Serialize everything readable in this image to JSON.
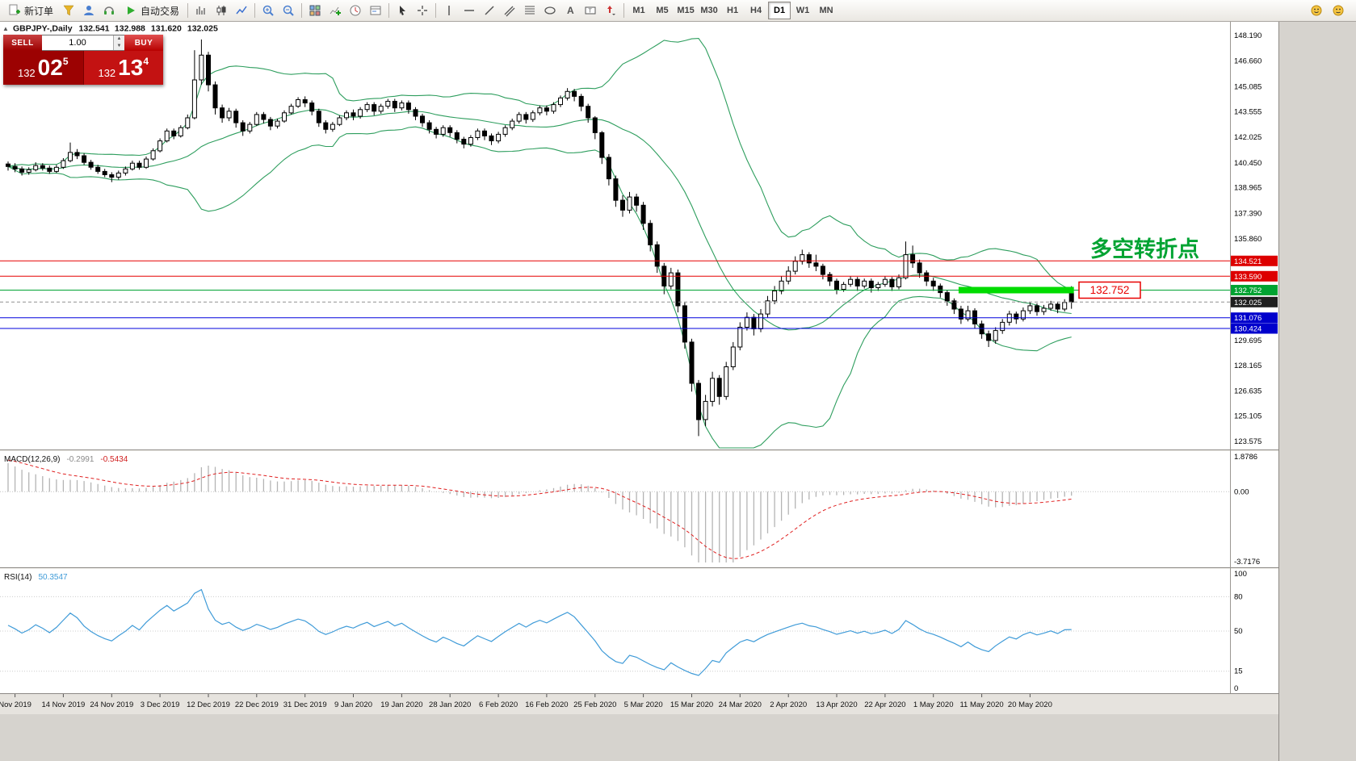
{
  "toolbar": {
    "new_order": "新订单",
    "autotrading": "自动交易",
    "timeframes": [
      "M1",
      "M5",
      "M15",
      "M30",
      "H1",
      "H4",
      "D1",
      "W1",
      "MN"
    ],
    "active_timeframe": "D1"
  },
  "quote": {
    "symbol": "GBPJPY-,Daily",
    "open": "132.541",
    "high": "132.988",
    "low": "131.620",
    "close": "132.025"
  },
  "trade_panel": {
    "sell_label": "SELL",
    "buy_label": "BUY",
    "volume": "1.00",
    "sell_price": {
      "prefix": "132",
      "main": "02",
      "sup": "5"
    },
    "buy_price": {
      "prefix": "132",
      "main": "13",
      "sup": "4"
    }
  },
  "annotations": {
    "turning_point": "多空转折点",
    "turning_point_color": "#00a332",
    "price_label": "132.752",
    "highlight_price": 132.752,
    "highlight_from_index": 138,
    "highlight_to_index": 154,
    "highlight_color": "#00dc00"
  },
  "levels": [
    {
      "value": 134.521,
      "label": "134.521",
      "color": "#e60000",
      "tag": "#dd0000",
      "style": "solid"
    },
    {
      "value": 133.59,
      "label": "133.590",
      "color": "#e60000",
      "tag": "#dd0000",
      "style": "solid"
    },
    {
      "value": 132.752,
      "label": "132.752",
      "color": "#00a332",
      "tag": "#00a332",
      "style": "solid"
    },
    {
      "value": 132.025,
      "label": "132.025",
      "color": "#909090",
      "tag": "#1f1f1f",
      "style": "dash"
    },
    {
      "value": 131.076,
      "label": "131.076",
      "color": "#0000dd",
      "tag": "#0000cc",
      "style": "solid"
    },
    {
      "value": 130.424,
      "label": "130.424",
      "color": "#0000dd",
      "tag": "#0000cc",
      "style": "solid"
    }
  ],
  "price_axis": {
    "labels": [
      148.19,
      146.66,
      145.085,
      143.555,
      142.025,
      140.45,
      138.965,
      137.39,
      135.86,
      129.695,
      128.165,
      126.635,
      125.105,
      123.575
    ]
  },
  "time_axis": {
    "labels": [
      {
        "text": "Nov 2019",
        "i": 1
      },
      {
        "text": "14 Nov 2019",
        "i": 8
      },
      {
        "text": "24 Nov 2019",
        "i": 15
      },
      {
        "text": "3 Dec 2019",
        "i": 22
      },
      {
        "text": "12 Dec 2019",
        "i": 29
      },
      {
        "text": "22 Dec 2019",
        "i": 36
      },
      {
        "text": "31 Dec 2019",
        "i": 43
      },
      {
        "text": "9 Jan 2020",
        "i": 50
      },
      {
        "text": "19 Jan 2020",
        "i": 57
      },
      {
        "text": "28 Jan 2020",
        "i": 64
      },
      {
        "text": "6 Feb 2020",
        "i": 71
      },
      {
        "text": "16 Feb 2020",
        "i": 78
      },
      {
        "text": "25 Feb 2020",
        "i": 85
      },
      {
        "text": "5 Mar 2020",
        "i": 92
      },
      {
        "text": "15 Mar 2020",
        "i": 99
      },
      {
        "text": "24 Mar 2020",
        "i": 106
      },
      {
        "text": "2 Apr 2020",
        "i": 113
      },
      {
        "text": "13 Apr 2020",
        "i": 120
      },
      {
        "text": "22 Apr 2020",
        "i": 127
      },
      {
        "text": "1 May 2020",
        "i": 134
      },
      {
        "text": "11 May 2020",
        "i": 141
      },
      {
        "text": "20 May 2020",
        "i": 148
      }
    ]
  },
  "macd": {
    "name": "MACD(12,26,9)",
    "value_main": "-0.2991",
    "value_signal": "-0.5434",
    "axis": [
      {
        "label": "1.8786",
        "pos": "max"
      },
      {
        "label": "0.00",
        "pos": "zero"
      },
      {
        "label": "-3.7176",
        "pos": "min"
      }
    ],
    "histogram_color": "#b4b4b4",
    "signal_color": "#e02020"
  },
  "rsi": {
    "name": "RSI(14)",
    "value": "50.3547",
    "color": "#3f9bd8",
    "axis": [
      {
        "v": 100,
        "label": "100"
      },
      {
        "v": 80,
        "label": "80"
      },
      {
        "v": 50,
        "label": "50"
      },
      {
        "v": 15,
        "label": "15"
      },
      {
        "v": 0,
        "label": "0"
      }
    ],
    "level_lines": [
      80,
      50,
      15
    ]
  },
  "chart_data": {
    "type": "candlestick",
    "title": "GBPJPY- Daily",
    "ylim": [
      123.575,
      148.19
    ],
    "macd_range": [
      -3.7176,
      1.8786
    ],
    "bollinger": {
      "period": 20,
      "deviation": 2,
      "color": "#2e9e5e"
    },
    "macd_seeds": {
      "fast_offset": 0.85,
      "slow_offset": -0.85,
      "signal_seed": 1.7
    },
    "rsi_seeds": {
      "avg_gain": 0.11,
      "avg_loss": 0.09
    },
    "ohlc": [
      [
        140.4,
        140.55,
        140.0,
        140.25
      ],
      [
        140.25,
        140.45,
        139.9,
        140.1
      ],
      [
        140.1,
        140.25,
        139.7,
        139.9
      ],
      [
        139.9,
        140.2,
        139.75,
        140.05
      ],
      [
        140.05,
        140.5,
        139.95,
        140.3
      ],
      [
        140.3,
        140.45,
        140.0,
        140.15
      ],
      [
        140.15,
        140.3,
        139.8,
        139.95
      ],
      [
        139.95,
        140.35,
        139.85,
        140.2
      ],
      [
        140.2,
        140.75,
        140.1,
        140.6
      ],
      [
        140.6,
        141.7,
        140.5,
        141.1
      ],
      [
        141.1,
        141.3,
        140.7,
        140.9
      ],
      [
        140.9,
        141.05,
        140.35,
        140.5
      ],
      [
        140.5,
        140.65,
        140.05,
        140.2
      ],
      [
        140.2,
        140.35,
        139.8,
        139.95
      ],
      [
        139.95,
        140.1,
        139.6,
        139.75
      ],
      [
        139.75,
        139.9,
        139.3,
        139.6
      ],
      [
        139.6,
        140.0,
        139.45,
        139.85
      ],
      [
        139.85,
        140.25,
        139.7,
        140.1
      ],
      [
        140.1,
        140.6,
        140.0,
        140.45
      ],
      [
        140.45,
        140.6,
        140.05,
        140.2
      ],
      [
        140.2,
        140.85,
        140.1,
        140.7
      ],
      [
        140.7,
        141.35,
        140.6,
        141.2
      ],
      [
        141.2,
        141.95,
        141.1,
        141.8
      ],
      [
        141.8,
        142.55,
        141.7,
        142.4
      ],
      [
        142.4,
        142.55,
        141.9,
        142.1
      ],
      [
        142.1,
        142.75,
        142.0,
        142.6
      ],
      [
        142.6,
        143.4,
        142.5,
        143.2
      ],
      [
        143.2,
        147.3,
        143.1,
        145.5
      ],
      [
        145.5,
        147.95,
        145.2,
        147.0
      ],
      [
        147.0,
        147.2,
        144.8,
        145.2
      ],
      [
        145.2,
        145.4,
        143.4,
        143.8
      ],
      [
        143.8,
        144.0,
        142.9,
        143.2
      ],
      [
        143.2,
        143.8,
        143.0,
        143.6
      ],
      [
        143.6,
        143.75,
        142.6,
        142.9
      ],
      [
        142.9,
        143.05,
        142.1,
        142.4
      ],
      [
        142.4,
        142.95,
        142.25,
        142.8
      ],
      [
        142.8,
        143.55,
        142.7,
        143.4
      ],
      [
        143.4,
        143.55,
        142.85,
        143.1
      ],
      [
        143.1,
        143.25,
        142.45,
        142.7
      ],
      [
        142.7,
        143.15,
        142.55,
        143.0
      ],
      [
        143.0,
        143.65,
        142.9,
        143.5
      ],
      [
        143.5,
        144.05,
        143.4,
        143.9
      ],
      [
        143.9,
        144.45,
        143.8,
        144.3
      ],
      [
        144.3,
        144.5,
        143.85,
        144.1
      ],
      [
        144.1,
        144.25,
        143.35,
        143.6
      ],
      [
        143.6,
        143.75,
        142.65,
        142.9
      ],
      [
        142.9,
        143.05,
        142.25,
        142.5
      ],
      [
        142.5,
        142.95,
        142.35,
        142.8
      ],
      [
        142.8,
        143.35,
        142.7,
        143.2
      ],
      [
        143.2,
        143.65,
        143.05,
        143.5
      ],
      [
        143.5,
        143.7,
        143.05,
        143.3
      ],
      [
        143.3,
        143.85,
        143.15,
        143.7
      ],
      [
        143.7,
        144.15,
        143.55,
        144.0
      ],
      [
        144.0,
        144.15,
        143.35,
        143.6
      ],
      [
        143.6,
        144.05,
        143.45,
        143.9
      ],
      [
        143.9,
        144.35,
        143.75,
        144.2
      ],
      [
        144.2,
        144.35,
        143.55,
        143.8
      ],
      [
        143.8,
        144.25,
        143.65,
        144.1
      ],
      [
        144.1,
        144.25,
        143.45,
        143.7
      ],
      [
        143.7,
        143.85,
        143.05,
        143.3
      ],
      [
        143.3,
        143.45,
        142.65,
        142.9
      ],
      [
        142.9,
        143.05,
        142.25,
        142.5
      ],
      [
        142.5,
        142.65,
        141.95,
        142.2
      ],
      [
        142.2,
        142.75,
        142.05,
        142.6
      ],
      [
        142.6,
        142.75,
        142.05,
        142.3
      ],
      [
        142.3,
        142.45,
        141.65,
        141.9
      ],
      [
        141.9,
        142.05,
        141.35,
        141.6
      ],
      [
        141.6,
        142.15,
        141.45,
        142.0
      ],
      [
        142.0,
        142.55,
        141.85,
        142.4
      ],
      [
        142.4,
        142.55,
        141.85,
        142.1
      ],
      [
        142.1,
        142.25,
        141.55,
        141.8
      ],
      [
        141.8,
        142.35,
        141.65,
        142.2
      ],
      [
        142.2,
        142.75,
        142.05,
        142.6
      ],
      [
        142.6,
        143.15,
        142.45,
        143.0
      ],
      [
        143.0,
        143.55,
        142.85,
        143.4
      ],
      [
        143.4,
        143.55,
        142.85,
        143.1
      ],
      [
        143.1,
        143.65,
        142.95,
        143.5
      ],
      [
        143.5,
        143.95,
        143.35,
        143.8
      ],
      [
        143.8,
        143.95,
        143.35,
        143.6
      ],
      [
        143.6,
        144.15,
        143.45,
        144.0
      ],
      [
        144.0,
        144.55,
        143.85,
        144.4
      ],
      [
        144.4,
        145.0,
        144.25,
        144.8
      ],
      [
        144.8,
        144.95,
        144.2,
        144.5
      ],
      [
        144.5,
        144.65,
        143.6,
        143.9
      ],
      [
        143.9,
        144.05,
        142.9,
        143.2
      ],
      [
        143.2,
        143.3,
        141.9,
        142.3
      ],
      [
        142.3,
        142.4,
        140.4,
        140.8
      ],
      [
        140.8,
        141.0,
        139.1,
        139.5
      ],
      [
        139.5,
        139.7,
        137.8,
        138.2
      ],
      [
        138.2,
        138.5,
        137.2,
        137.6
      ],
      [
        137.6,
        138.7,
        137.4,
        138.4
      ],
      [
        138.4,
        138.6,
        137.5,
        137.9
      ],
      [
        137.9,
        138.1,
        136.4,
        136.8
      ],
      [
        136.8,
        137.0,
        135.1,
        135.5
      ],
      [
        135.5,
        135.7,
        133.8,
        134.2
      ],
      [
        134.2,
        134.4,
        132.5,
        133.0
      ],
      [
        133.0,
        134.1,
        132.8,
        133.8
      ],
      [
        133.8,
        134.0,
        131.4,
        131.8
      ],
      [
        131.8,
        132.0,
        129.2,
        129.6
      ],
      [
        129.6,
        129.8,
        126.6,
        127.1
      ],
      [
        127.1,
        127.3,
        123.9,
        124.9
      ],
      [
        124.9,
        126.4,
        124.5,
        126.0
      ],
      [
        126.0,
        127.8,
        125.7,
        127.4
      ],
      [
        127.4,
        127.6,
        125.8,
        126.3
      ],
      [
        126.3,
        128.4,
        126.1,
        128.1
      ],
      [
        128.1,
        129.6,
        127.9,
        129.3
      ],
      [
        129.3,
        130.8,
        129.1,
        130.5
      ],
      [
        130.5,
        131.4,
        130.3,
        131.1
      ],
      [
        131.1,
        131.3,
        130.0,
        130.4
      ],
      [
        130.4,
        131.6,
        130.2,
        131.3
      ],
      [
        131.3,
        132.4,
        131.1,
        132.1
      ],
      [
        132.1,
        133.0,
        131.9,
        132.7
      ],
      [
        132.7,
        133.6,
        132.5,
        133.3
      ],
      [
        133.3,
        134.2,
        133.1,
        133.9
      ],
      [
        133.9,
        134.8,
        133.7,
        134.5
      ],
      [
        134.5,
        135.2,
        134.3,
        134.9
      ],
      [
        134.9,
        135.05,
        134.1,
        134.4
      ],
      [
        134.4,
        134.9,
        133.9,
        134.2
      ],
      [
        134.2,
        134.35,
        133.4,
        133.7
      ],
      [
        133.7,
        133.85,
        133.0,
        133.3
      ],
      [
        133.3,
        133.45,
        132.5,
        132.8
      ],
      [
        132.8,
        133.25,
        132.65,
        133.1
      ],
      [
        133.1,
        133.6,
        132.95,
        133.4
      ],
      [
        133.4,
        133.55,
        132.7,
        133.0
      ],
      [
        133.0,
        133.45,
        132.85,
        133.3
      ],
      [
        133.3,
        133.45,
        132.6,
        132.9
      ],
      [
        132.9,
        133.25,
        132.7,
        133.1
      ],
      [
        133.1,
        133.6,
        132.95,
        133.4
      ],
      [
        133.4,
        133.55,
        132.7,
        132.95
      ],
      [
        132.95,
        133.7,
        132.8,
        133.5
      ],
      [
        133.5,
        135.7,
        133.4,
        134.9
      ],
      [
        134.9,
        135.45,
        134.1,
        134.4
      ],
      [
        134.4,
        134.6,
        133.5,
        133.8
      ],
      [
        133.8,
        133.95,
        133.0,
        133.3
      ],
      [
        133.3,
        133.5,
        132.7,
        133.0
      ],
      [
        133.0,
        133.15,
        132.3,
        132.6
      ],
      [
        132.6,
        132.75,
        131.8,
        132.1
      ],
      [
        132.1,
        132.25,
        131.3,
        131.6
      ],
      [
        131.6,
        131.8,
        130.7,
        131.0
      ],
      [
        131.0,
        131.8,
        130.85,
        131.5
      ],
      [
        131.5,
        131.65,
        130.4,
        130.7
      ],
      [
        130.7,
        130.9,
        129.8,
        130.1
      ],
      [
        130.1,
        130.3,
        129.3,
        129.7
      ],
      [
        129.7,
        130.5,
        129.5,
        130.3
      ],
      [
        130.3,
        131.0,
        130.1,
        130.8
      ],
      [
        130.8,
        131.5,
        130.6,
        131.3
      ],
      [
        131.3,
        131.45,
        130.7,
        131.0
      ],
      [
        131.0,
        131.7,
        130.85,
        131.5
      ],
      [
        131.5,
        132.0,
        131.3,
        131.8
      ],
      [
        131.8,
        131.95,
        131.2,
        131.45
      ],
      [
        131.45,
        131.85,
        131.25,
        131.65
      ],
      [
        131.65,
        132.1,
        131.5,
        131.9
      ],
      [
        131.9,
        132.05,
        131.35,
        131.6
      ],
      [
        131.6,
        132.2,
        131.45,
        132.0
      ],
      [
        132.54,
        132.99,
        131.62,
        132.03
      ]
    ]
  }
}
